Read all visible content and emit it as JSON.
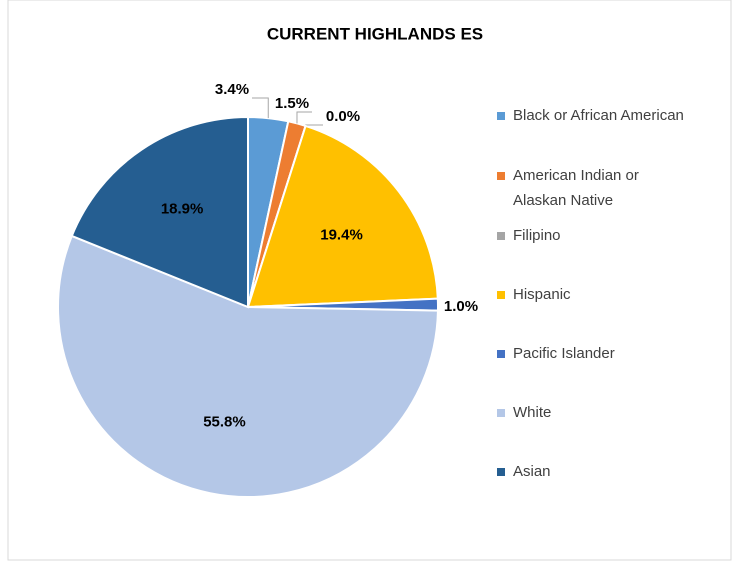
{
  "chart_data": {
    "type": "pie",
    "title": "CURRENT HIGHLANDS ES",
    "categories": [
      "Black or African American",
      "American Indian or Alaskan Native",
      "Filipino",
      "Hispanic",
      "Pacific Islander",
      "White",
      "Asian"
    ],
    "values": [
      3.4,
      1.5,
      0.0,
      19.4,
      1.0,
      55.8,
      18.9
    ],
    "value_labels": [
      "3.4%",
      "1.5%",
      "0.0%",
      "19.4%",
      "1.0%",
      "55.8%",
      "18.9%"
    ],
    "colors": [
      "#5b9bd5",
      "#ed7d31",
      "#a5a5a5",
      "#ffc000",
      "#4472c4",
      "#b4c7e7",
      "#255e91"
    ],
    "legend": "right"
  }
}
